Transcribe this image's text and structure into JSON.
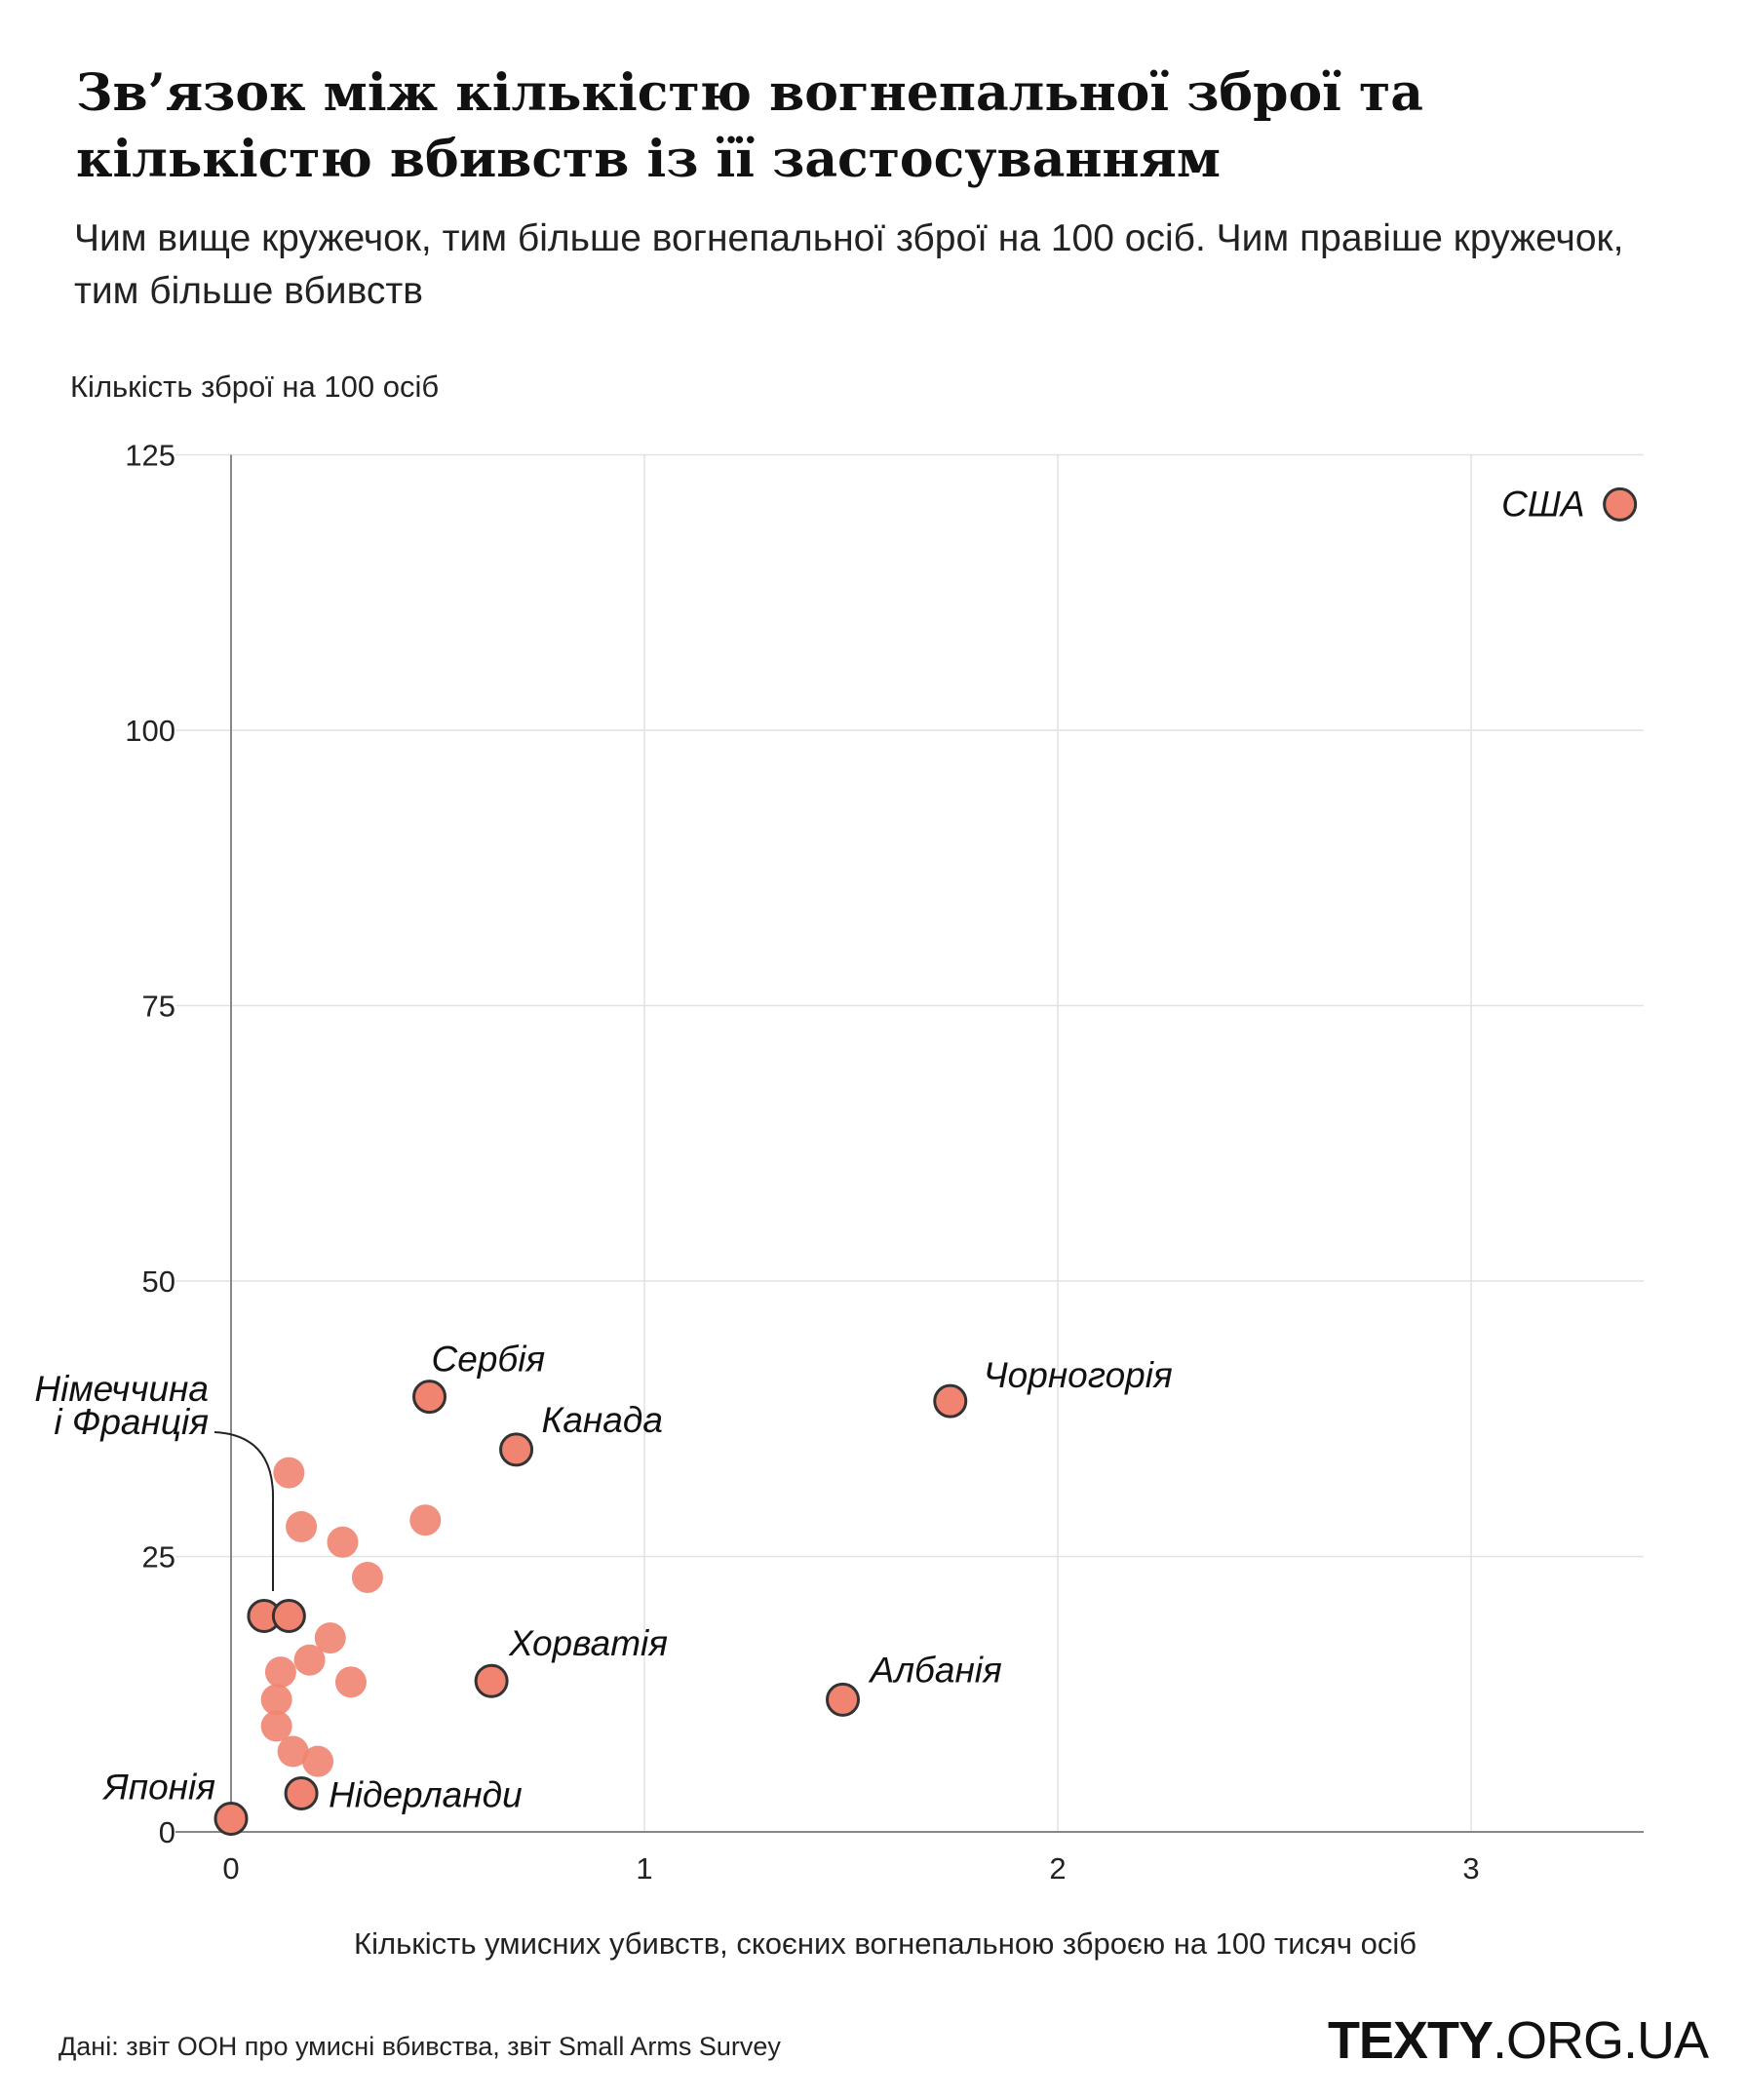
{
  "title": "Зв’язок між кількістю вогнепальної зброї та кількістю вбивств із її застосуванням",
  "subtitle": "Чим вище кружечок, тим більше вогнепальної зброї на 100 осіб. Чим правіше кружечок, тим більше вбивств",
  "source": "Дані: звіт ООН про умисні вбивства, звіт Small Arms Survey",
  "logo": {
    "bold": "TEXTY",
    "rest": ".ORG.UA"
  },
  "colors": {
    "dot": "#f08470",
    "outline": "#333333",
    "grid": "#e2e2e2",
    "axis": "#888888"
  },
  "chart_data": {
    "type": "scatter",
    "xlabel": "Кількість умисних убивств, скоєних вогнепальною зброєю на 100 тисяч осіб",
    "ylabel": "Кількість зброї на 100 осіб",
    "xlim": [
      0,
      3.45
    ],
    "ylim": [
      0,
      125
    ],
    "xticks": [
      0,
      1,
      2,
      3
    ],
    "yticks": [
      0,
      25,
      50,
      75,
      100,
      125
    ],
    "grid": true,
    "points": [
      {
        "label": "США",
        "x": 3.36,
        "y": 120.5,
        "highlight": true
      },
      {
        "label": "Чорногорія",
        "x": 1.74,
        "y": 39.1,
        "highlight": true
      },
      {
        "label": "Сербія",
        "x": 0.48,
        "y": 39.5,
        "highlight": true
      },
      {
        "label": "Канада",
        "x": 0.69,
        "y": 34.7,
        "highlight": true
      },
      {
        "label": "Хорватія",
        "x": 0.63,
        "y": 13.7,
        "highlight": true
      },
      {
        "label": "Албанія",
        "x": 1.48,
        "y": 12.0,
        "highlight": true
      },
      {
        "label": "Японія",
        "x": 0.0,
        "y": 1.2,
        "highlight": true
      },
      {
        "label": "Нідерланди",
        "x": 0.17,
        "y": 3.5,
        "highlight": true
      },
      {
        "label": "",
        "x": 0.08,
        "y": 19.6,
        "highlight": true
      },
      {
        "label": "",
        "x": 0.14,
        "y": 19.6,
        "highlight": true
      },
      {
        "label": "",
        "x": 0.14,
        "y": 32.6
      },
      {
        "label": "",
        "x": 0.17,
        "y": 27.7
      },
      {
        "label": "",
        "x": 0.27,
        "y": 26.3
      },
      {
        "label": "",
        "x": 0.47,
        "y": 28.3
      },
      {
        "label": "",
        "x": 0.33,
        "y": 23.1
      },
      {
        "label": "",
        "x": 0.24,
        "y": 17.6
      },
      {
        "label": "",
        "x": 0.19,
        "y": 15.6
      },
      {
        "label": "",
        "x": 0.12,
        "y": 14.5
      },
      {
        "label": "",
        "x": 0.29,
        "y": 13.6
      },
      {
        "label": "",
        "x": 0.11,
        "y": 12.0
      },
      {
        "label": "",
        "x": 0.11,
        "y": 9.6
      },
      {
        "label": "",
        "x": 0.15,
        "y": 7.3
      },
      {
        "label": "",
        "x": 0.21,
        "y": 6.4
      }
    ],
    "annotations": [
      {
        "text": "Німеччина",
        "line": 1
      },
      {
        "text": "і Франція",
        "line": 2
      }
    ]
  }
}
